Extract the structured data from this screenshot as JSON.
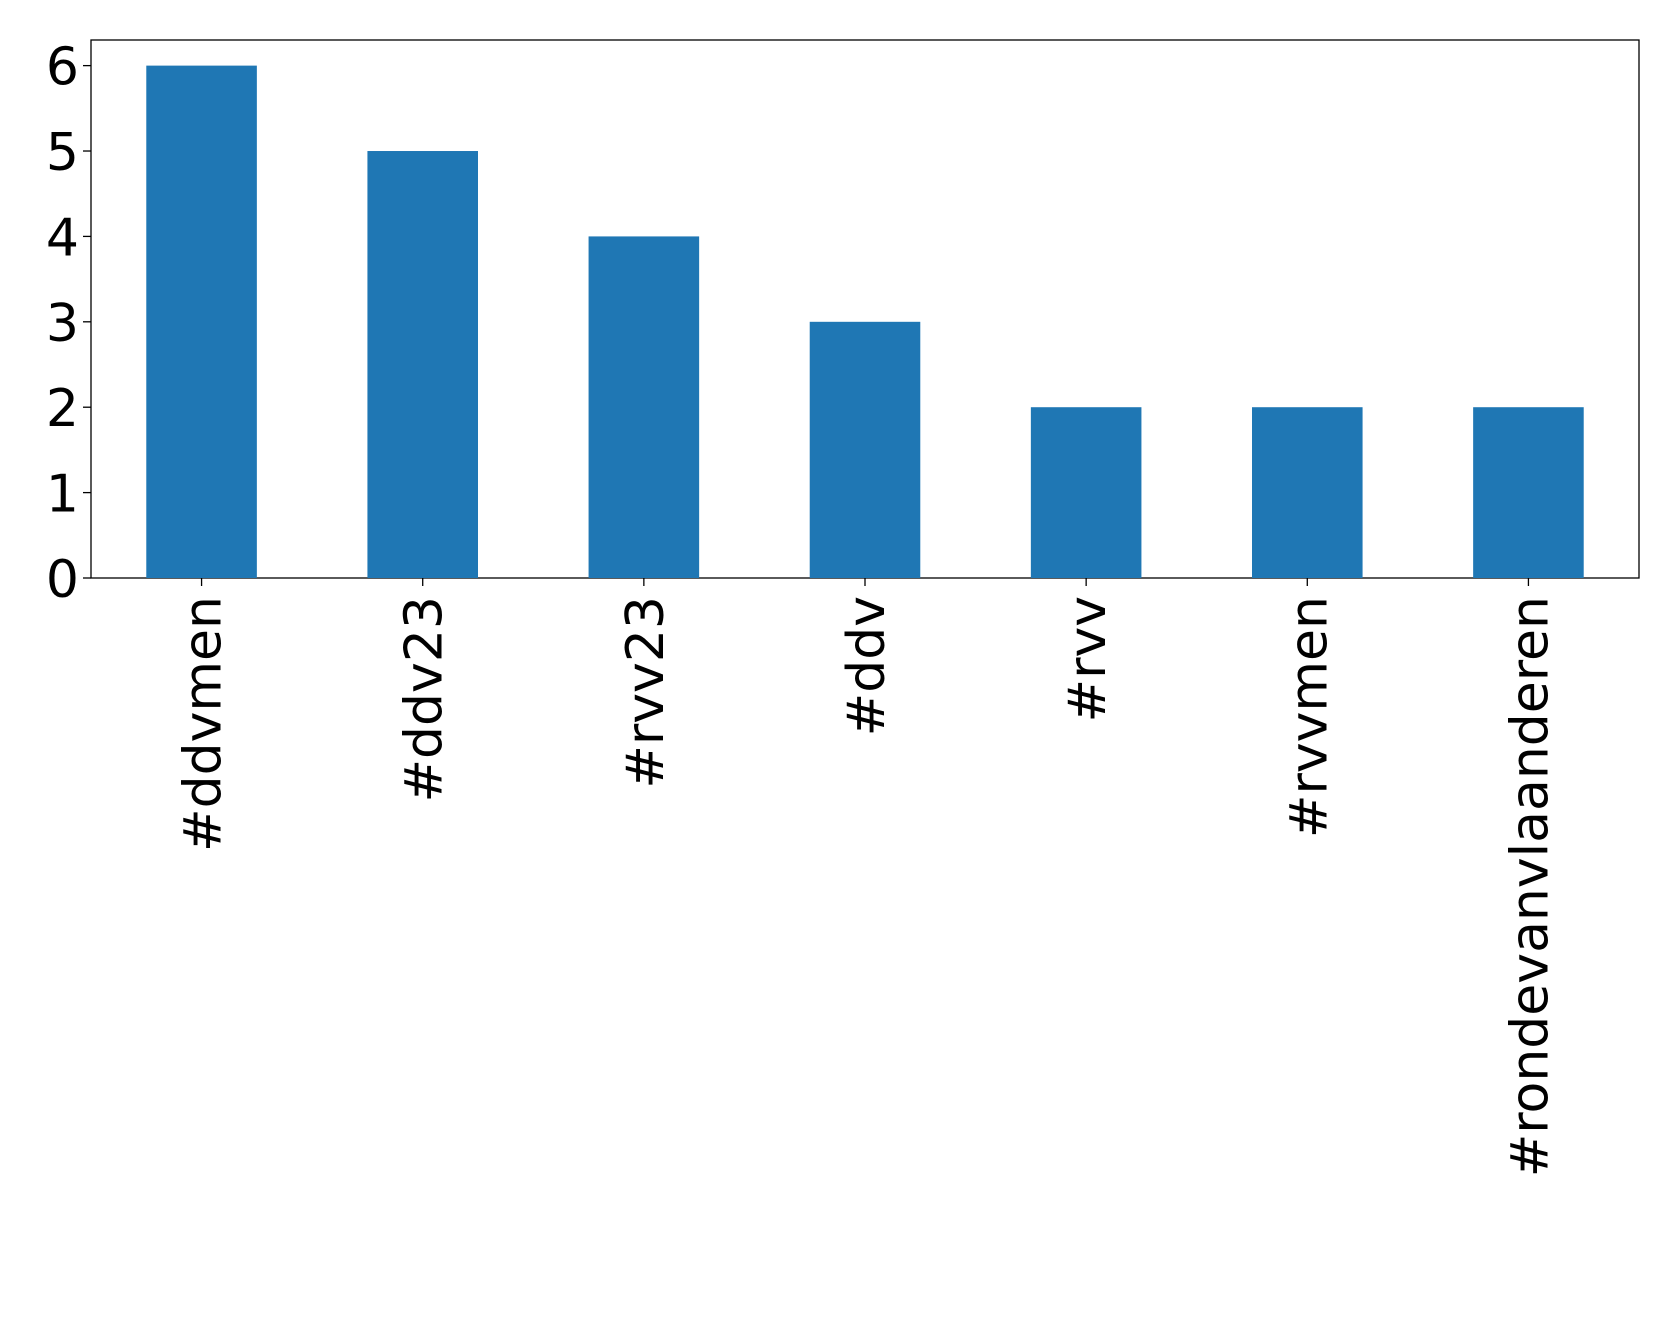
{
  "chart_data": {
    "type": "bar",
    "categories": [
      "#ddvmen",
      "#ddv23",
      "#rvv23",
      "#ddv",
      "#rvv",
      "#rvvmen",
      "#rondevanvlaanderen"
    ],
    "values": [
      6,
      5,
      4,
      3,
      2,
      2,
      2
    ],
    "color": "#1f77b4",
    "ylim": [
      0,
      6.3
    ],
    "yticks": [
      0,
      1,
      2,
      3,
      4,
      5,
      6
    ],
    "grid": false
  }
}
